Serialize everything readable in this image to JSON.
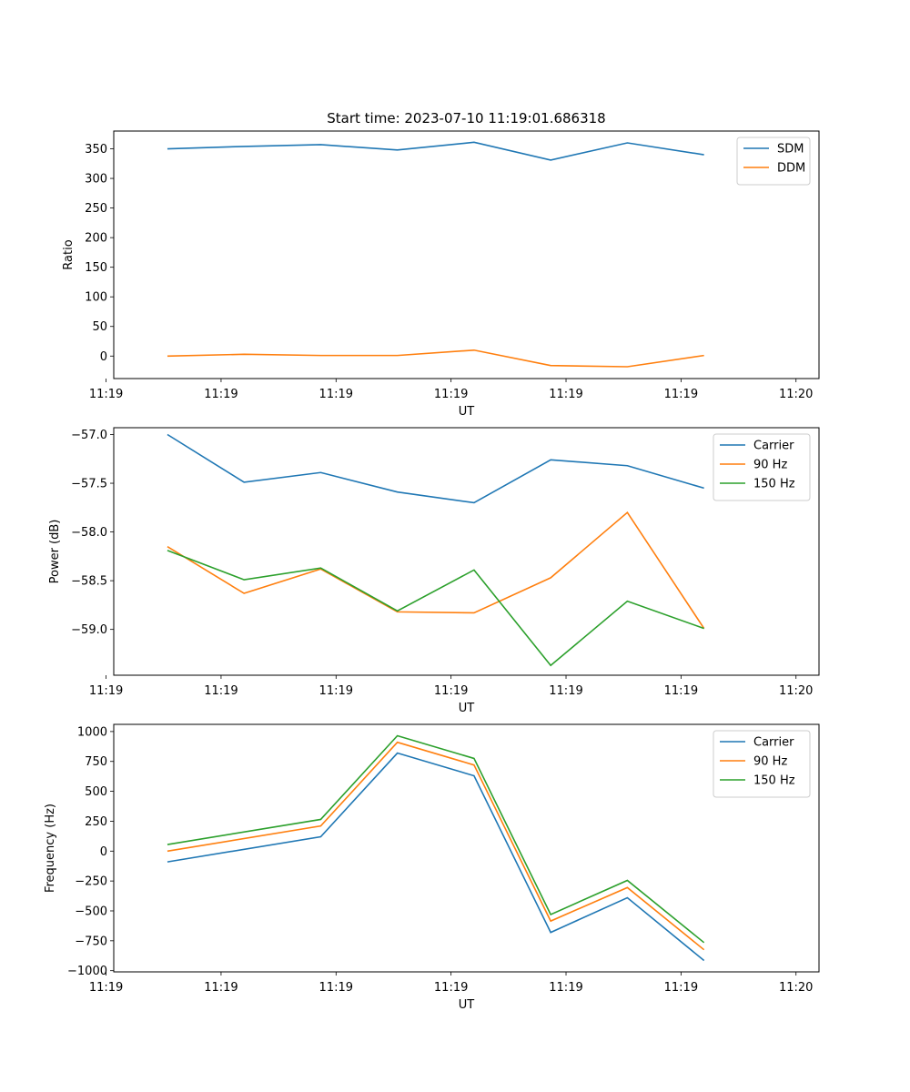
{
  "chart_data": [
    {
      "type": "line",
      "title": "Start time: 2023-07-10 11:19:01.686318",
      "xlabel": "UT",
      "ylabel": "Ratio",
      "x": [
        1,
        2,
        3,
        4,
        5,
        6,
        7,
        8
      ],
      "xlim": [
        0.3,
        9.5
      ],
      "ylim": [
        -38,
        380
      ],
      "x_ticks": [
        {
          "value": 0.2,
          "label": "11:19"
        },
        {
          "value": 1.7,
          "label": "11:19"
        },
        {
          "value": 3.2,
          "label": "11:19"
        },
        {
          "value": 4.7,
          "label": "11:19"
        },
        {
          "value": 6.2,
          "label": "11:19"
        },
        {
          "value": 7.7,
          "label": "11:19"
        },
        {
          "value": 9.2,
          "label": "11:20"
        }
      ],
      "y_ticks": [
        {
          "value": 0,
          "label": "0"
        },
        {
          "value": 50,
          "label": "50"
        },
        {
          "value": 100,
          "label": "100"
        },
        {
          "value": 150,
          "label": "150"
        },
        {
          "value": 200,
          "label": "200"
        },
        {
          "value": 250,
          "label": "250"
        },
        {
          "value": 300,
          "label": "300"
        },
        {
          "value": 350,
          "label": "350"
        }
      ],
      "legend": "top-right",
      "series": [
        {
          "name": "SDM",
          "color": "#1f77b4",
          "values": [
            350,
            354,
            357,
            348,
            361,
            331,
            360,
            340
          ]
        },
        {
          "name": "DDM",
          "color": "#ff7f0e",
          "values": [
            0,
            3,
            1,
            1,
            10,
            -16,
            -18,
            1
          ]
        }
      ]
    },
    {
      "type": "line",
      "title": "",
      "xlabel": "UT",
      "ylabel": "Power (dB)",
      "x": [
        1,
        2,
        3,
        4,
        5,
        6,
        7,
        8
      ],
      "xlim": [
        0.3,
        9.5
      ],
      "ylim": [
        -59.47,
        -56.93
      ],
      "x_ticks": [
        {
          "value": 0.2,
          "label": "11:19"
        },
        {
          "value": 1.7,
          "label": "11:19"
        },
        {
          "value": 3.2,
          "label": "11:19"
        },
        {
          "value": 4.7,
          "label": "11:19"
        },
        {
          "value": 6.2,
          "label": "11:19"
        },
        {
          "value": 7.7,
          "label": "11:19"
        },
        {
          "value": 9.2,
          "label": "11:20"
        }
      ],
      "y_ticks": [
        {
          "value": -59.0,
          "label": "−59.0"
        },
        {
          "value": -58.5,
          "label": "−58.5"
        },
        {
          "value": -58.0,
          "label": "−58.0"
        },
        {
          "value": -57.5,
          "label": "−57.5"
        },
        {
          "value": -57.0,
          "label": "−57.0"
        }
      ],
      "legend": "top-right",
      "series": [
        {
          "name": "Carrier",
          "color": "#1f77b4",
          "values": [
            -57.0,
            -57.49,
            -57.39,
            -57.59,
            -57.7,
            -57.26,
            -57.32,
            -57.55
          ]
        },
        {
          "name": "90 Hz",
          "color": "#ff7f0e",
          "values": [
            -58.15,
            -58.63,
            -58.38,
            -58.82,
            -58.83,
            -58.47,
            -57.8,
            -58.99
          ]
        },
        {
          "name": "150 Hz",
          "color": "#2ca02c",
          "values": [
            -58.19,
            -58.49,
            -58.37,
            -58.81,
            -58.39,
            -59.37,
            -58.71,
            -58.99
          ]
        }
      ]
    },
    {
      "type": "line",
      "title": "",
      "xlabel": "UT",
      "ylabel": "Frequency (Hz)",
      "x": [
        1,
        2,
        3,
        4,
        5,
        6,
        7,
        8
      ],
      "xlim": [
        0.3,
        9.5
      ],
      "ylim": [
        -1010,
        1060
      ],
      "x_ticks": [
        {
          "value": 0.2,
          "label": "11:19"
        },
        {
          "value": 1.7,
          "label": "11:19"
        },
        {
          "value": 3.2,
          "label": "11:19"
        },
        {
          "value": 4.7,
          "label": "11:19"
        },
        {
          "value": 6.2,
          "label": "11:19"
        },
        {
          "value": 7.7,
          "label": "11:19"
        },
        {
          "value": 9.2,
          "label": "11:20"
        }
      ],
      "y_ticks": [
        {
          "value": -1000,
          "label": "−1000"
        },
        {
          "value": -750,
          "label": "−750"
        },
        {
          "value": -500,
          "label": "−500"
        },
        {
          "value": -250,
          "label": "−250"
        },
        {
          "value": 0,
          "label": "0"
        },
        {
          "value": 250,
          "label": "250"
        },
        {
          "value": 500,
          "label": "500"
        },
        {
          "value": 750,
          "label": "750"
        },
        {
          "value": 1000,
          "label": "1000"
        }
      ],
      "legend": "top-right",
      "series": [
        {
          "name": "Carrier",
          "color": "#1f77b4",
          "values": [
            -90,
            null,
            120,
            820,
            630,
            -680,
            -390,
            -915
          ]
        },
        {
          "name": "90 Hz",
          "color": "#ff7f0e",
          "values": [
            0,
            null,
            210,
            910,
            720,
            -585,
            -305,
            -825
          ]
        },
        {
          "name": "150 Hz",
          "color": "#2ca02c",
          "values": [
            55,
            null,
            265,
            965,
            775,
            -530,
            -245,
            -765
          ]
        }
      ]
    }
  ]
}
